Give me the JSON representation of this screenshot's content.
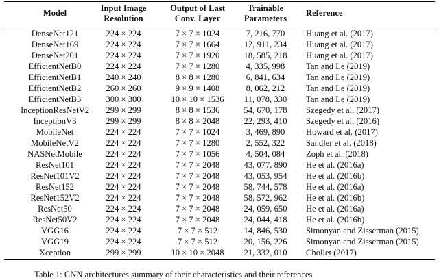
{
  "table": {
    "header": [
      "Model",
      "Input Image Resolution",
      "Output of Last Conv. Layer",
      "Trainable Parameters",
      "Reference"
    ],
    "rows": [
      [
        "DenseNet121",
        "224 × 224",
        "7 × 7 × 1024",
        "7, 216, 770",
        "Huang et al. (2017)"
      ],
      [
        "DenseNet169",
        "224 × 224",
        "7 × 7 × 1664",
        "12, 911, 234",
        "Huang et al. (2017)"
      ],
      [
        "DenseNet201",
        "224 × 224",
        "7 × 7 × 1920",
        "18, 585, 218",
        "Huang et al. (2017)"
      ],
      [
        "EfficientNetB0",
        "224 × 224",
        "7 × 7 × 1280",
        "4, 335, 998",
        "Tan and Le (2019)"
      ],
      [
        "EfficientNetB1",
        "240 × 240",
        "8 × 8 × 1280",
        "6, 841, 634",
        "Tan and Le (2019)"
      ],
      [
        "EfficientNetB2",
        "260 × 260",
        "9 × 9 × 1408",
        "8, 062, 212",
        "Tan and Le (2019)"
      ],
      [
        "EfficientNetB3",
        "300 × 300",
        "10 × 10 × 1536",
        "11, 078, 330",
        "Tan and Le (2019)"
      ],
      [
        "InceptionResNetV2",
        "299 × 299",
        "8 × 8 × 1536",
        "54, 670, 178",
        "Szegedy et al. (2017)"
      ],
      [
        "InceptionV3",
        "299 × 299",
        "8 × 8 × 2048",
        "22, 293, 410",
        "Szegedy et al. (2016)"
      ],
      [
        "MobileNet",
        "224 × 224",
        "7 × 7 × 1024",
        "3, 469, 890",
        "Howard et al. (2017)"
      ],
      [
        "MobileNetV2",
        "224 × 224",
        "7 × 7 × 1280",
        "2, 552, 322",
        "Sandler et al. (2018)"
      ],
      [
        "NASNetMobile",
        "224 × 224",
        "7 × 7 × 1056",
        "4, 504, 084",
        "Zoph et al. (2018)"
      ],
      [
        "ResNet101",
        "224 × 224",
        "7 × 7 × 2048",
        "43, 077, 890",
        "He et al. (2016a)"
      ],
      [
        "ResNet101V2",
        "224 × 224",
        "7 × 7 × 2048",
        "43, 053, 954",
        "He et al. (2016b)"
      ],
      [
        "ResNet152",
        "224 × 224",
        "7 × 7 × 2048",
        "58, 744, 578",
        "He et al. (2016a)"
      ],
      [
        "ResNet152V2",
        "224 × 224",
        "7 × 7 × 2048",
        "58, 572, 962",
        "He et al. (2016b)"
      ],
      [
        "ResNet50",
        "224 × 224",
        "7 × 7 × 2048",
        "24, 059, 650",
        "He et al. (2016a)"
      ],
      [
        "ResNet50V2",
        "224 × 224",
        "7 × 7 × 2048",
        "24, 044, 418",
        "He et al. (2016b)"
      ],
      [
        "VGG16",
        "224 × 224",
        "7 × 7 × 512",
        "14, 846, 530",
        "Simonyan and Zisserman (2015)"
      ],
      [
        "VGG19",
        "224 × 224",
        "7 × 7 × 512",
        "20, 156, 226",
        "Simonyan and Zisserman (2015)"
      ],
      [
        "Xception",
        "299 × 299",
        "10 × 10 × 2048",
        "21, 332, 010",
        "Chollet (2017)"
      ]
    ],
    "caption": "Table 1: CNN architectures summary of their characteristics and their references"
  }
}
